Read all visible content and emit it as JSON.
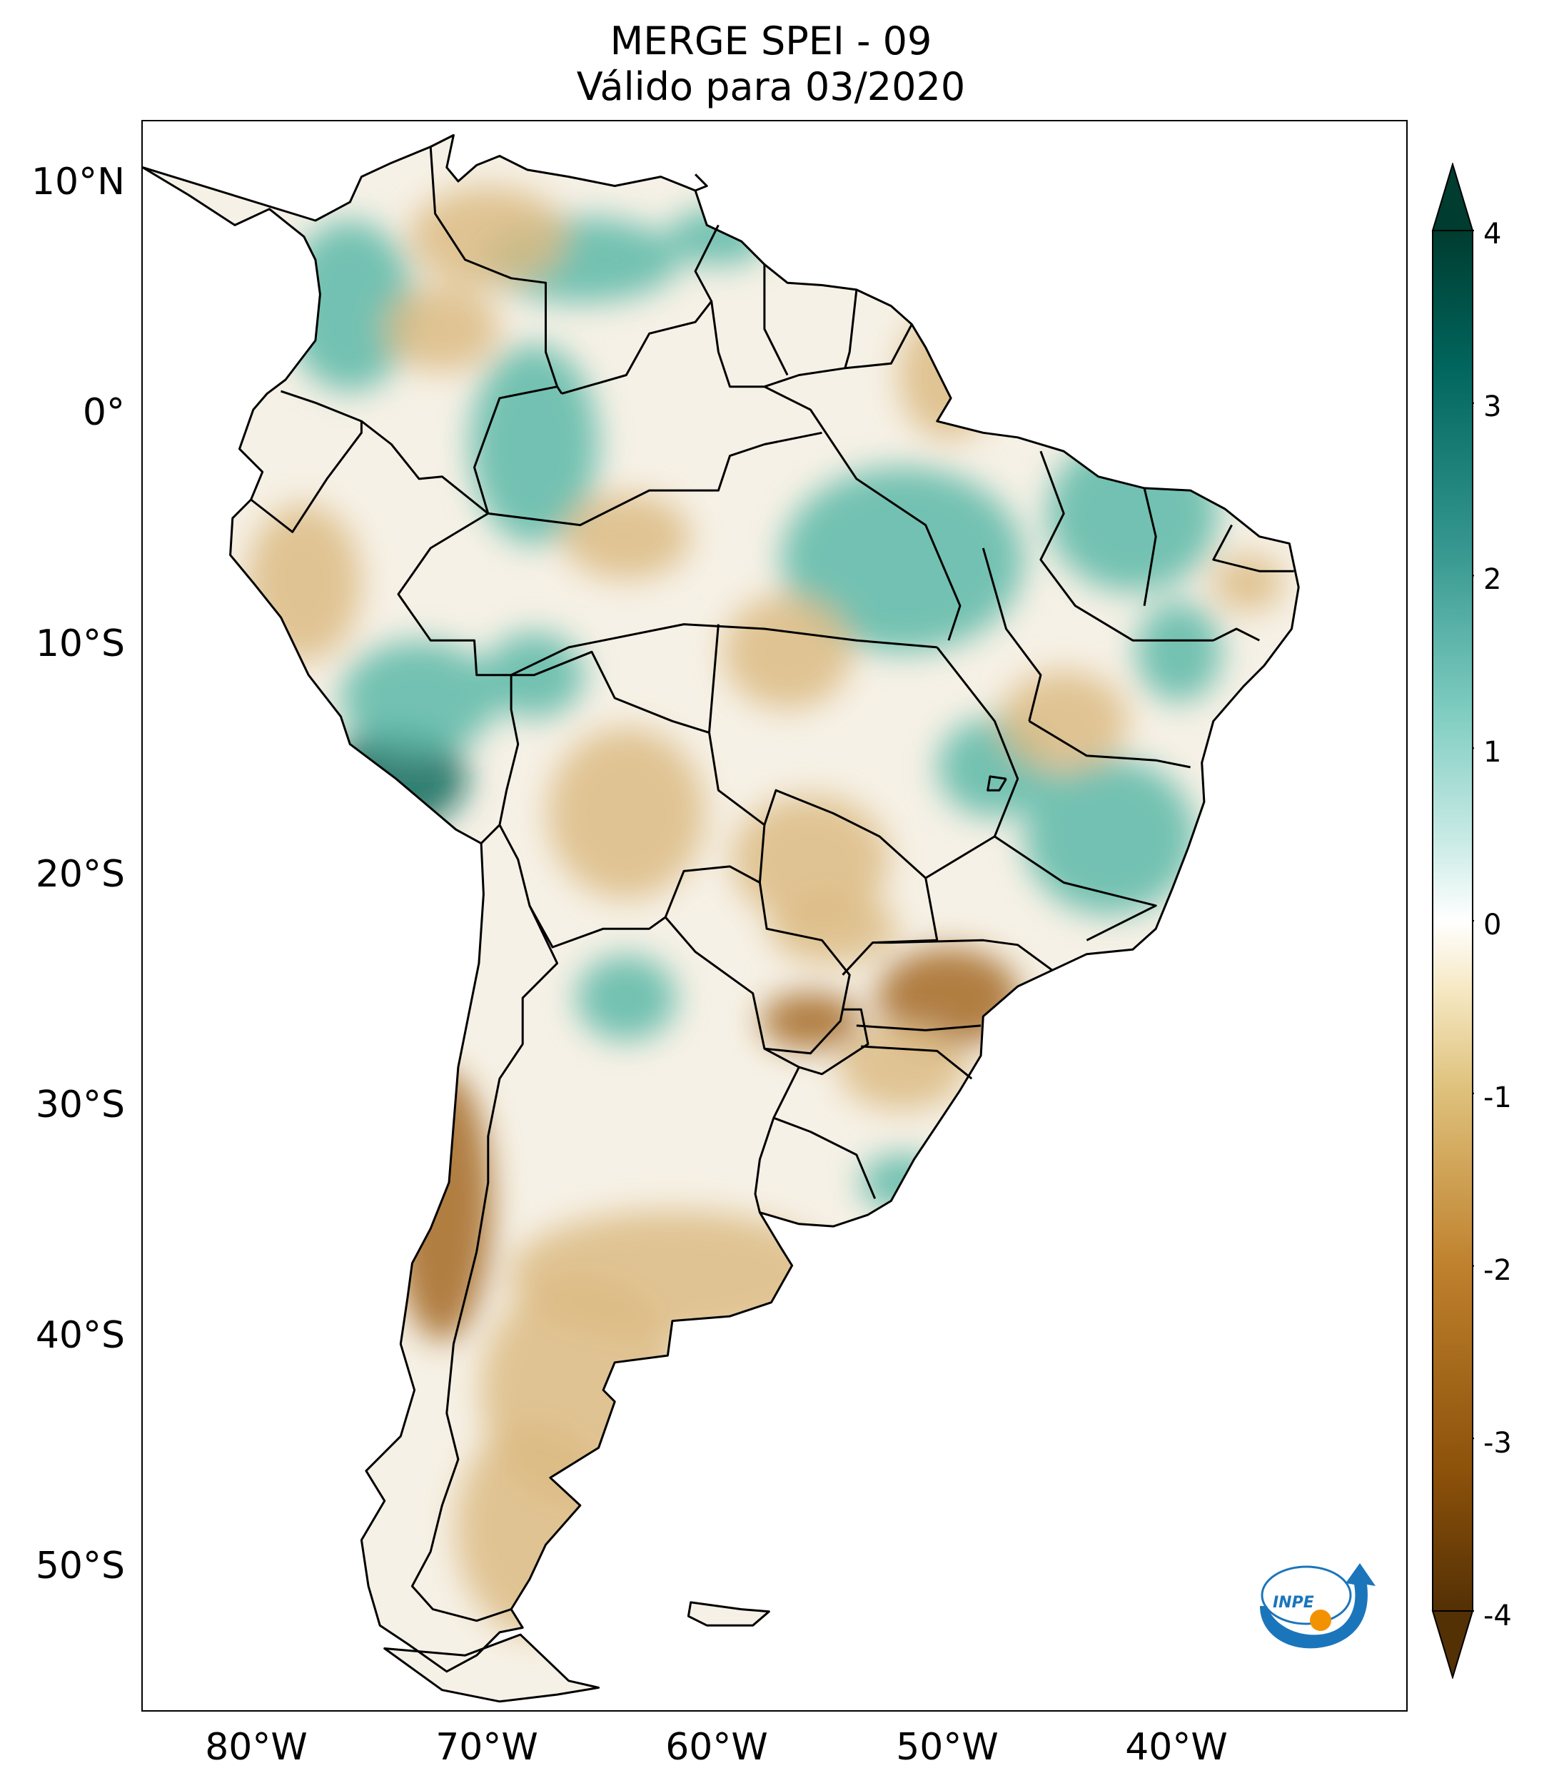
{
  "title": {
    "line1": "MERGE   SPEI - 09",
    "line2": "Válido para 03/2020"
  },
  "map": {
    "region": "South America",
    "lon_range": [
      -85,
      -30
    ],
    "lat_range": [
      -56,
      13
    ],
    "lat_ticks": [
      {
        "value": 10,
        "label": "10°N"
      },
      {
        "value": 0,
        "label": "0°"
      },
      {
        "value": -10,
        "label": "10°S"
      },
      {
        "value": -20,
        "label": "20°S"
      },
      {
        "value": -30,
        "label": "30°S"
      },
      {
        "value": -40,
        "label": "40°S"
      },
      {
        "value": -50,
        "label": "50°S"
      }
    ],
    "lon_ticks": [
      {
        "value": -80,
        "label": "80°W"
      },
      {
        "value": -70,
        "label": "70°W"
      },
      {
        "value": -60,
        "label": "60°W"
      },
      {
        "value": -50,
        "label": "50°W"
      },
      {
        "value": -40,
        "label": "40°W"
      }
    ],
    "fill_colors": {
      "wet": "#5cb8a8",
      "very_wet": "#0f6b5e",
      "dry": "#dcbb84",
      "very_dry": "#a56a25",
      "neutral": "#f6f1e6",
      "ocean": "#ffffff",
      "border": "#000000"
    }
  },
  "colorbar": {
    "min": -4,
    "max": 4,
    "ticks": [
      {
        "value": 4,
        "label": "4"
      },
      {
        "value": 3,
        "label": "3"
      },
      {
        "value": 2,
        "label": "2"
      },
      {
        "value": 1,
        "label": "1"
      },
      {
        "value": 0,
        "label": "0"
      },
      {
        "value": -1,
        "label": "-1"
      },
      {
        "value": -2,
        "label": "-2"
      },
      {
        "value": -3,
        "label": "-3"
      },
      {
        "value": -4,
        "label": "-4"
      }
    ],
    "colors": [
      "#543005",
      "#8c510a",
      "#bf812d",
      "#dfc27d",
      "#f6e8c3",
      "#ffffff",
      "#c7eae5",
      "#80cdc1",
      "#35978f",
      "#01665e",
      "#003c30"
    ]
  },
  "logo": {
    "text": "INPE",
    "blue": "#1b75bb",
    "orange": "#f39200"
  }
}
